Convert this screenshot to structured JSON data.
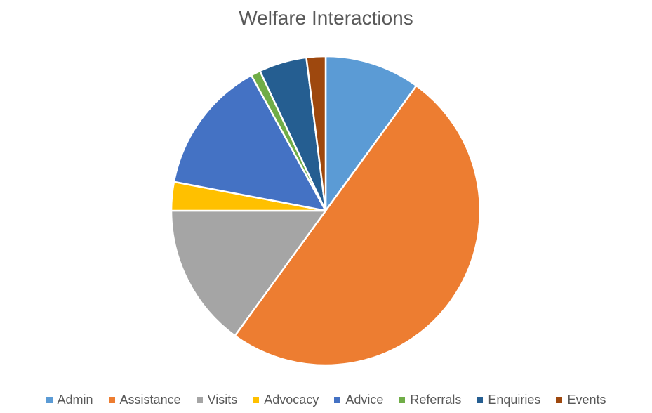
{
  "chart_data": {
    "type": "pie",
    "title": "Welfare Interactions",
    "categories": [
      "Admin",
      "Assistance",
      "Visits",
      "Advocacy",
      "Advice",
      "Referrals",
      "Enquiries",
      "Events"
    ],
    "values": [
      10,
      50,
      15,
      3,
      14,
      1,
      5,
      2
    ],
    "unit": "percent (estimated share)",
    "colors": [
      "#5B9BD5",
      "#ED7D31",
      "#A5A5A5",
      "#FFC000",
      "#4472C4",
      "#70AD47",
      "#255E91",
      "#9E480E"
    ],
    "start_angle": "12 o'clock",
    "direction": "clockwise",
    "legend_position": "bottom"
  }
}
